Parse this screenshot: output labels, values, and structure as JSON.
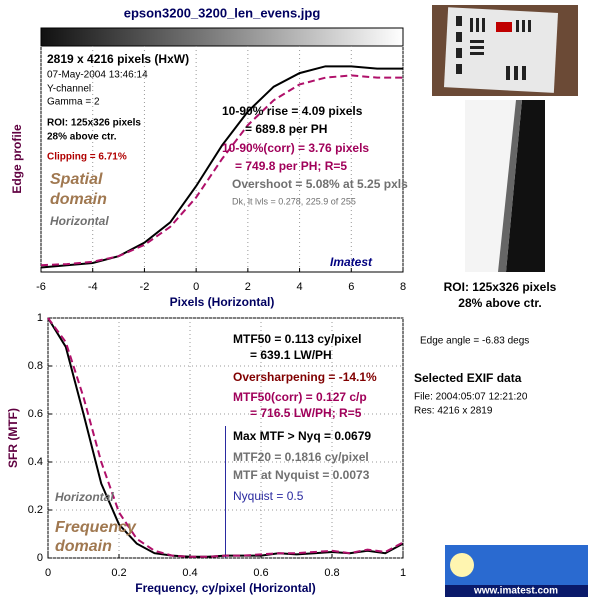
{
  "title": "epson3200_3200_len_evens.jpg",
  "side": {
    "roi": "ROI: 125x326 pixels",
    "roi_position": "28% above ctr.",
    "edge_angle": "Edge angle = -6.83 degs",
    "exif_title": "Selected EXIF data",
    "exif_file": "File:  2004:05:07 12:21:20",
    "exif_res": "Res:    4216 x 2819",
    "logo": "www.imatest.com"
  },
  "chart_data": [
    {
      "type": "line",
      "xlabel": "Pixels (Horizontal)",
      "ylabel": "Edge profile",
      "xlim": [
        -6,
        8
      ],
      "ylim": [
        0,
        1
      ],
      "xticks": [
        -6,
        -4,
        -2,
        0,
        2,
        4,
        6,
        8
      ],
      "grid": true,
      "x": [
        -6,
        -5,
        -4,
        -3,
        -2,
        -1,
        0,
        1,
        2,
        3,
        4,
        5,
        6,
        7,
        8
      ],
      "series": [
        {
          "color": "#000000",
          "dash": false,
          "values": [
            0.02,
            0.03,
            0.04,
            0.07,
            0.13,
            0.22,
            0.38,
            0.56,
            0.71,
            0.82,
            0.88,
            0.91,
            0.91,
            0.9,
            0.9
          ]
        },
        {
          "color": "#b0106a",
          "dash": true,
          "values": [
            0.03,
            0.035,
            0.045,
            0.07,
            0.12,
            0.2,
            0.33,
            0.5,
            0.65,
            0.76,
            0.83,
            0.86,
            0.87,
            0.86,
            0.86
          ]
        }
      ],
      "annotations": [
        {
          "text": "2819 x 4216 pixels (HxW)",
          "color": "#000000"
        },
        {
          "text": "07-May-2004 13:46:14",
          "color": "#000000"
        },
        {
          "text": "Y-channel",
          "color": "#000000"
        },
        {
          "text": "Gamma = 2",
          "color": "#000000"
        },
        {
          "text": "ROI: 125x326 pixels",
          "color": "#000000"
        },
        {
          "text": "28% above ctr.",
          "color": "#000000"
        },
        {
          "text": "Clipping =  6.71%",
          "color": "#b00000"
        },
        {
          "text": "Spatial",
          "color": "#a07850"
        },
        {
          "text": "domain",
          "color": "#a07850"
        },
        {
          "text": "Horizontal",
          "color": "#707070"
        },
        {
          "text": "10-90% rise = 4.09 pixels",
          "color": "#000000"
        },
        {
          "text": "= 689.8 per PH",
          "color": "#000000"
        },
        {
          "text": "10-90%(corr) = 3.76 pixels",
          "color": "#a0005a"
        },
        {
          "text": "= 749.8 per PH;  R=5",
          "color": "#a0005a"
        },
        {
          "text": "Overshoot = 5.08% at 5.25 pxls",
          "color": "#707070"
        },
        {
          "text": "Dk, lt lvls = 0.278, 225.9 of 255",
          "color": "#707070"
        },
        {
          "text": "Imatest",
          "color": "#000080"
        }
      ]
    },
    {
      "type": "line",
      "xlabel": "Frequency,  cy/pixel (Horizontal)",
      "ylabel": "SFR (MTF)",
      "xlim": [
        0,
        1
      ],
      "ylim": [
        0,
        1
      ],
      "xticks": [
        0,
        0.2,
        0.4,
        0.6,
        0.8,
        1
      ],
      "yticks": [
        0,
        0.2,
        0.4,
        0.6,
        0.8,
        1
      ],
      "grid": true,
      "x": [
        0,
        0.05,
        0.1,
        0.15,
        0.2,
        0.25,
        0.3,
        0.35,
        0.4,
        0.45,
        0.5,
        0.55,
        0.6,
        0.65,
        0.7,
        0.75,
        0.8,
        0.85,
        0.9,
        0.95,
        1
      ],
      "series": [
        {
          "color": "#000000",
          "dash": false,
          "values": [
            1,
            0.88,
            0.6,
            0.31,
            0.14,
            0.06,
            0.02,
            0.01,
            0.005,
            0.005,
            0.01,
            0.01,
            0.01,
            0.02,
            0.015,
            0.02,
            0.025,
            0.02,
            0.03,
            0.02,
            0.06
          ]
        },
        {
          "color": "#b0106a",
          "dash": true,
          "values": [
            1,
            0.9,
            0.67,
            0.4,
            0.19,
            0.08,
            0.03,
            0.01,
            0.005,
            0.005,
            0.01,
            0.01,
            0.015,
            0.02,
            0.02,
            0.025,
            0.03,
            0.02,
            0.035,
            0.025,
            0.065
          ]
        }
      ],
      "reference_line": {
        "x": 0.5,
        "top": 0.55,
        "label": "Nyquist = 0.5",
        "color": "#2a2aa0"
      },
      "annotations": [
        {
          "text": "MTF50 = 0.113 cy/pixel",
          "color": "#000000"
        },
        {
          "text": "= 639.1 LW/PH",
          "color": "#000000"
        },
        {
          "text": "Oversharpening = -14.1%",
          "color": "#800000"
        },
        {
          "text": "MTF50(corr) = 0.127 c/p",
          "color": "#a0005a"
        },
        {
          "text": "= 716.5 LW/PH;  R=5",
          "color": "#a0005a"
        },
        {
          "text": "Max MTF > Nyq = 0.0679",
          "color": "#000000"
        },
        {
          "text": "MTF20 = 0.1816 cy/pixel",
          "color": "#707070"
        },
        {
          "text": "MTF at Nyquist = 0.0073",
          "color": "#707070"
        },
        {
          "text": "Horizontal",
          "color": "#707070"
        },
        {
          "text": "Frequency",
          "color": "#a07850"
        },
        {
          "text": "domain",
          "color": "#a07850"
        }
      ]
    }
  ]
}
